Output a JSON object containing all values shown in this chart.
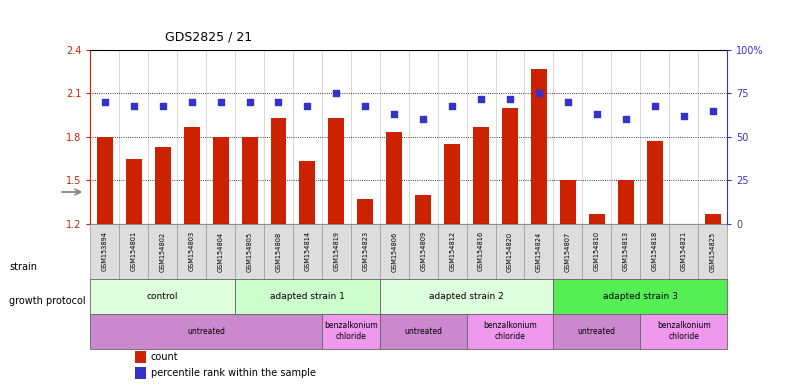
{
  "title": "GDS2825 / 21",
  "samples": [
    "GSM153894",
    "GSM154801",
    "GSM154802",
    "GSM154803",
    "GSM154804",
    "GSM154805",
    "GSM154808",
    "GSM154814",
    "GSM154819",
    "GSM154823",
    "GSM154806",
    "GSM154809",
    "GSM154812",
    "GSM154816",
    "GSM154820",
    "GSM154824",
    "GSM154807",
    "GSM154810",
    "GSM154813",
    "GSM154818",
    "GSM154821",
    "GSM154825"
  ],
  "counts": [
    1.8,
    1.65,
    1.73,
    1.87,
    1.8,
    1.8,
    1.93,
    1.63,
    1.93,
    1.37,
    1.83,
    1.4,
    1.75,
    1.87,
    2.0,
    2.27,
    1.5,
    1.27,
    1.5,
    1.77,
    1.2,
    1.27
  ],
  "percentiles": [
    70,
    68,
    68,
    70,
    70,
    70,
    70,
    68,
    75,
    68,
    63,
    60,
    68,
    72,
    72,
    75,
    70,
    63,
    60,
    68,
    62,
    65
  ],
  "ylim_left": [
    1.2,
    2.4
  ],
  "ylim_right": [
    0,
    100
  ],
  "yticks_left": [
    1.2,
    1.5,
    1.8,
    2.1,
    2.4
  ],
  "yticks_right": [
    0,
    25,
    50,
    75,
    100
  ],
  "ytick_labels_right": [
    "0",
    "25",
    "50",
    "75",
    "100%"
  ],
  "bar_color": "#cc2200",
  "dot_color": "#3333cc",
  "background_color": "#ffffff",
  "sample_label_bg": "#dddddd",
  "strain_groups": [
    {
      "label": "control",
      "start": 0,
      "end": 4,
      "color": "#ddffdd"
    },
    {
      "label": "adapted strain 1",
      "start": 5,
      "end": 9,
      "color": "#ccffcc"
    },
    {
      "label": "adapted strain 2",
      "start": 10,
      "end": 15,
      "color": "#ddffdd"
    },
    {
      "label": "adapted strain 3",
      "start": 16,
      "end": 21,
      "color": "#55ee55"
    }
  ],
  "protocol_groups": [
    {
      "label": "untreated",
      "start": 0,
      "end": 7,
      "color": "#cc88cc"
    },
    {
      "label": "benzalkonium\nchloride",
      "start": 8,
      "end": 9,
      "color": "#ee99ee"
    },
    {
      "label": "untreated",
      "start": 10,
      "end": 12,
      "color": "#cc88cc"
    },
    {
      "label": "benzalkonium\nchloride",
      "start": 13,
      "end": 15,
      "color": "#ee99ee"
    },
    {
      "label": "untreated",
      "start": 16,
      "end": 18,
      "color": "#cc88cc"
    },
    {
      "label": "benzalkonium\nchloride",
      "start": 19,
      "end": 21,
      "color": "#ee99ee"
    }
  ]
}
